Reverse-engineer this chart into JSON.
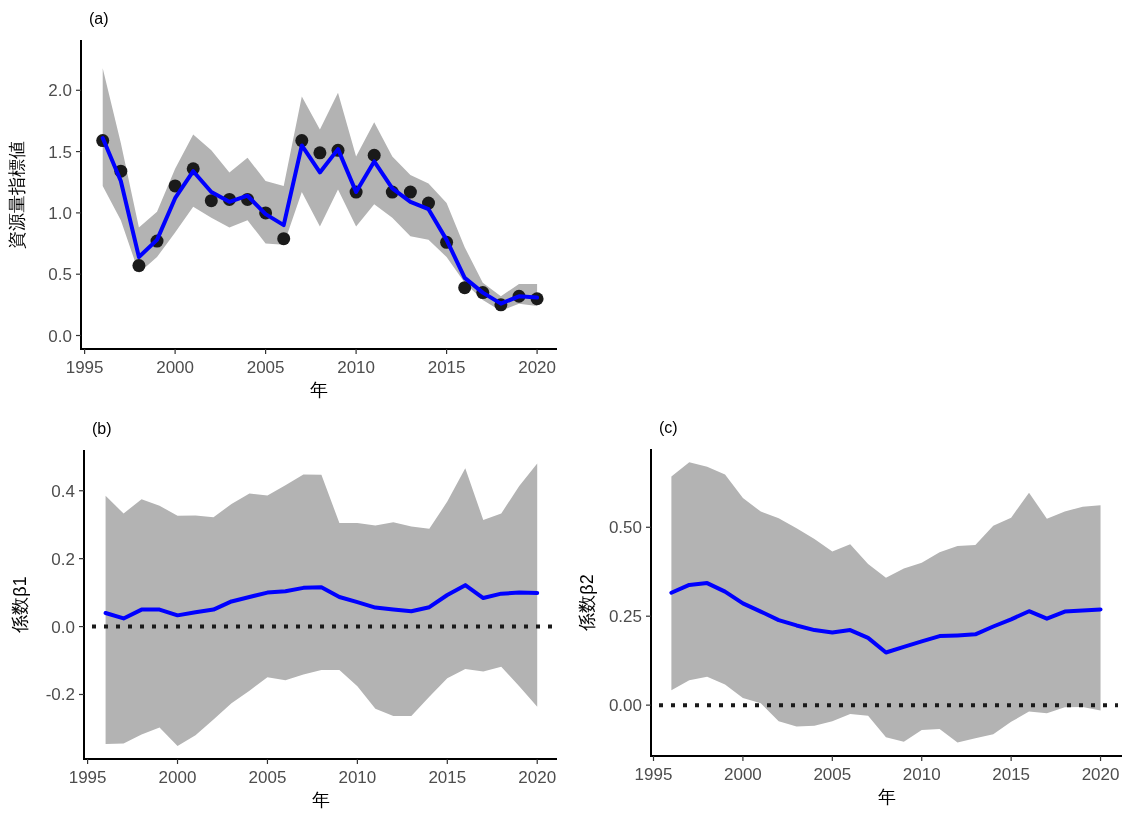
{
  "chart_data": [
    {
      "type": "line",
      "title": "(a)",
      "xlabel": "年",
      "ylabel": "資源量指標値",
      "x": [
        1996,
        1997,
        1998,
        1999,
        2000,
        2001,
        2002,
        2003,
        2004,
        2005,
        2006,
        2007,
        2008,
        2009,
        2010,
        2011,
        2012,
        2013,
        2014,
        2015,
        2016,
        2017,
        2018,
        2019,
        2020
      ],
      "xlim": [
        1994.8,
        2021.1
      ],
      "xticks": [
        1995,
        2000,
        2005,
        2010,
        2015,
        2020
      ],
      "ylim": [
        -0.11,
        2.41
      ],
      "yticks": [
        {
          "value": 0,
          "label": "0.0"
        },
        {
          "value": 0.5,
          "label": "0.5"
        },
        {
          "value": 1,
          "label": "1.0"
        },
        {
          "value": 1.5,
          "label": "1.5"
        },
        {
          "value": 2,
          "label": "2.0"
        }
      ],
      "grid": false,
      "series": [
        {
          "type": "scatter",
          "marker": "circle",
          "color": "#1a1a1a",
          "values": [
            1.59,
            1.34,
            0.57,
            0.77,
            1.22,
            1.36,
            1.1,
            1.11,
            1.11,
            1.0,
            0.79,
            1.59,
            1.49,
            1.51,
            1.17,
            1.47,
            1.17,
            1.17,
            1.08,
            0.76,
            0.39,
            0.35,
            0.25,
            0.32,
            0.3
          ]
        },
        {
          "line_style": "solid",
          "color": "#0000ff",
          "values": [
            1.61,
            1.26,
            0.64,
            0.78,
            1.12,
            1.34,
            1.17,
            1.09,
            1.14,
            0.99,
            0.9,
            1.55,
            1.33,
            1.52,
            1.17,
            1.42,
            1.2,
            1.09,
            1.03,
            0.78,
            0.47,
            0.35,
            0.26,
            0.32,
            0.31
          ],
          "upper": [
            2.18,
            1.57,
            0.88,
            1.01,
            1.36,
            1.64,
            1.51,
            1.33,
            1.45,
            1.26,
            1.22,
            1.95,
            1.68,
            1.98,
            1.46,
            1.74,
            1.46,
            1.31,
            1.24,
            1.08,
            0.72,
            0.43,
            0.32,
            0.42,
            0.42
          ],
          "lower": [
            1.22,
            0.94,
            0.51,
            0.64,
            0.84,
            1.05,
            0.96,
            0.88,
            0.94,
            0.75,
            0.74,
            1.17,
            0.89,
            1.19,
            0.89,
            1.07,
            0.96,
            0.81,
            0.78,
            0.64,
            0.43,
            0.29,
            0.2,
            0.26,
            0.24
          ]
        }
      ]
    },
    {
      "type": "line",
      "title": "(b)",
      "xlabel": "年",
      "ylabel": "係数β1",
      "x": [
        1996,
        1997,
        1998,
        1999,
        2000,
        2001,
        2002,
        2003,
        2004,
        2005,
        2006,
        2007,
        2008,
        2009,
        2010,
        2011,
        2012,
        2013,
        2014,
        2015,
        2016,
        2017,
        2018,
        2019,
        2020
      ],
      "xlim": [
        1994.8,
        2021.1
      ],
      "xticks": [
        1995,
        2000,
        2005,
        2010,
        2015,
        2020
      ],
      "ylim": [
        -0.39,
        0.52
      ],
      "yticks": [
        {
          "value": -0.2,
          "label": "-0.2"
        },
        {
          "value": 0,
          "label": "0.0"
        },
        {
          "value": 0.2,
          "label": "0.2"
        },
        {
          "value": 0.4,
          "label": "0.4"
        }
      ],
      "grid": false,
      "ref_lines": [
        {
          "axis": "y",
          "value": 0,
          "line_style": "dotted",
          "color": "#1a1a1a"
        }
      ],
      "series": [
        {
          "line_style": "solid",
          "color": "#0000ff",
          "values": [
            0.04,
            0.024,
            0.05,
            0.05,
            0.033,
            0.042,
            0.05,
            0.074,
            0.087,
            0.1,
            0.104,
            0.114,
            0.116,
            0.087,
            0.072,
            0.056,
            0.05,
            0.045,
            0.057,
            0.093,
            0.122,
            0.084,
            0.097,
            0.1,
            0.099
          ],
          "upper": [
            0.385,
            0.333,
            0.375,
            0.356,
            0.326,
            0.327,
            0.322,
            0.361,
            0.392,
            0.386,
            0.416,
            0.448,
            0.447,
            0.305,
            0.305,
            0.298,
            0.307,
            0.295,
            0.288,
            0.368,
            0.466,
            0.314,
            0.333,
            0.414,
            0.48
          ],
          "lower": [
            -0.346,
            -0.344,
            -0.318,
            -0.297,
            -0.352,
            -0.32,
            -0.274,
            -0.226,
            -0.189,
            -0.149,
            -0.158,
            -0.141,
            -0.128,
            -0.128,
            -0.176,
            -0.242,
            -0.263,
            -0.263,
            -0.207,
            -0.152,
            -0.125,
            -0.132,
            -0.118,
            -0.176,
            -0.236
          ]
        }
      ]
    },
    {
      "type": "line",
      "title": "(c)",
      "xlabel": "年",
      "ylabel": "係数β2",
      "x": [
        1996,
        1997,
        1998,
        1999,
        2000,
        2001,
        2002,
        2003,
        2004,
        2005,
        2006,
        2007,
        2008,
        2009,
        2010,
        2011,
        2012,
        2013,
        2014,
        2015,
        2016,
        2017,
        2018,
        2019,
        2020
      ],
      "xlim": [
        1994.86,
        2021.2
      ],
      "xticks": [
        1995,
        2000,
        2005,
        2010,
        2015,
        2020
      ],
      "ylim": [
        -0.143,
        0.72
      ],
      "yticks": [
        {
          "value": 0,
          "label": "0.00"
        },
        {
          "value": 0.25,
          "label": "0.25"
        },
        {
          "value": 0.5,
          "label": "0.50"
        }
      ],
      "grid": false,
      "ref_lines": [
        {
          "axis": "y",
          "value": 0,
          "line_style": "dotted",
          "color": "#1a1a1a"
        }
      ],
      "series": [
        {
          "line_style": "solid",
          "color": "#0000ff",
          "values": [
            0.316,
            0.338,
            0.343,
            0.319,
            0.286,
            0.263,
            0.239,
            0.224,
            0.211,
            0.204,
            0.211,
            0.189,
            0.148,
            0.164,
            0.179,
            0.194,
            0.196,
            0.199,
            0.221,
            0.241,
            0.264,
            0.243,
            0.263,
            0.266,
            0.269
          ],
          "upper": [
            0.643,
            0.683,
            0.67,
            0.648,
            0.582,
            0.544,
            0.525,
            0.497,
            0.467,
            0.432,
            0.452,
            0.397,
            0.358,
            0.384,
            0.4,
            0.43,
            0.447,
            0.45,
            0.504,
            0.527,
            0.597,
            0.524,
            0.544,
            0.558,
            0.562
          ],
          "lower": [
            0.042,
            0.07,
            0.08,
            0.058,
            0.02,
            0.005,
            -0.045,
            -0.06,
            -0.058,
            -0.045,
            -0.025,
            -0.03,
            -0.09,
            -0.103,
            -0.07,
            -0.067,
            -0.105,
            -0.093,
            -0.082,
            -0.047,
            -0.018,
            -0.023,
            -0.006,
            -0.005,
            -0.015
          ]
        }
      ]
    }
  ]
}
